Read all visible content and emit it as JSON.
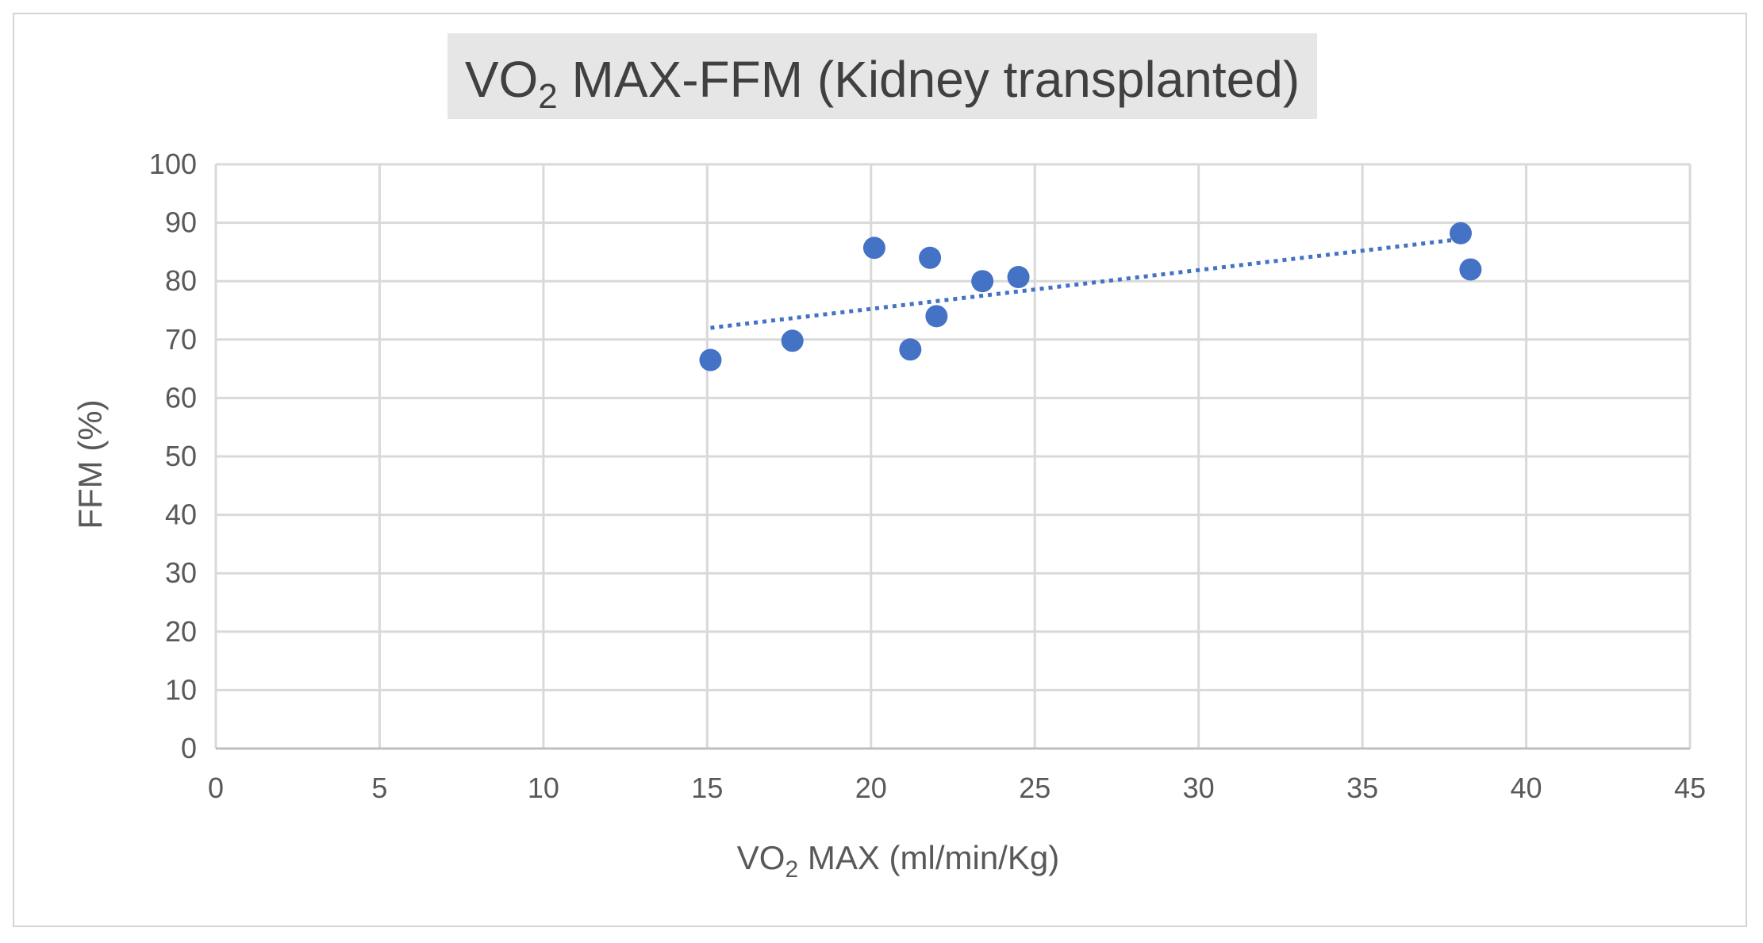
{
  "chart_data": {
    "type": "scatter",
    "title": {
      "prefix": "VO",
      "subscript": "2",
      "suffix": " MAX-FFM (Kidney transplanted)"
    },
    "xlabel": {
      "prefix": "VO",
      "subscript": "2",
      "suffix": " MAX (ml/min/Kg)"
    },
    "ylabel": "FFM (%)",
    "xlim": [
      0,
      45
    ],
    "ylim": [
      0,
      100
    ],
    "xticks": [
      "0",
      "5",
      "10",
      "15",
      "20",
      "25",
      "30",
      "35",
      "40",
      "45"
    ],
    "yticks": [
      "0",
      "10",
      "20",
      "30",
      "40",
      "50",
      "60",
      "70",
      "80",
      "90",
      "100"
    ],
    "grid": true,
    "series": [
      {
        "name": "Kidney transplanted",
        "color": "#4472c4",
        "x": [
          15.1,
          17.6,
          20.1,
          21.2,
          21.8,
          22.0,
          23.4,
          24.5,
          38.0,
          38.3
        ],
        "y": [
          66.5,
          69.8,
          85.7,
          68.3,
          84.0,
          74.0,
          80.0,
          80.7,
          88.2,
          82.0
        ]
      }
    ],
    "trendline": {
      "type": "linear",
      "style": "dotted",
      "color": "#4472c4",
      "x": [
        15.1,
        38.0
      ],
      "y": [
        72.0,
        87.2
      ]
    }
  }
}
